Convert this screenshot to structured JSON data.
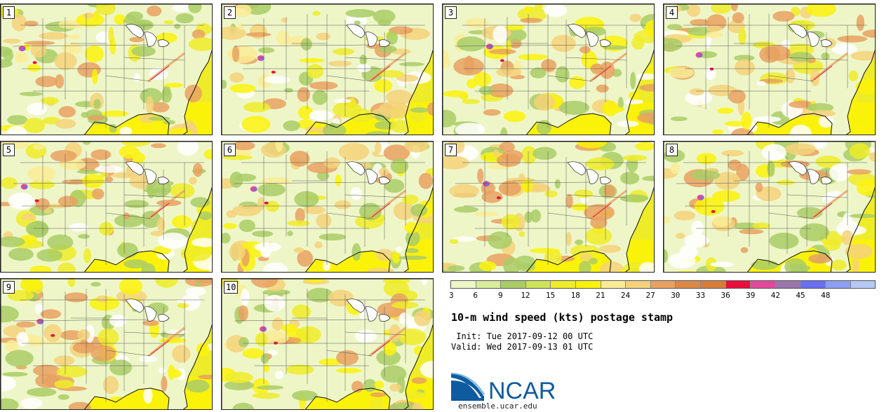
{
  "title": "10-m wind speed (kts) postage stamp",
  "init_line": " Init: Tue 2017-09-12 00 UTC",
  "valid_line": "Valid: Wed 2017-09-13 01 UTC",
  "members": [
    "1",
    "2",
    "3",
    "4",
    "5",
    "6",
    "7",
    "8",
    "9",
    "10"
  ],
  "colorbar": {
    "ticks": [
      "3",
      "6",
      "9",
      "12",
      "15",
      "18",
      "21",
      "24",
      "27",
      "30",
      "33",
      "36",
      "39",
      "42",
      "45",
      "48"
    ],
    "colors": [
      "#eef6c8",
      "#d8ec9a",
      "#a9cc66",
      "#cde35a",
      "#eeec28",
      "#fbf20a",
      "#faec96",
      "#f5d27a",
      "#e8a160",
      "#dd8845",
      "#d77d3c",
      "#e8103a",
      "#e04a9c",
      "#9a74aa",
      "#6a6ef0",
      "#8c9ef2",
      "#b6c8f3"
    ]
  },
  "logo_text": "NCAR",
  "website": "ensemble.ucar.edu"
}
